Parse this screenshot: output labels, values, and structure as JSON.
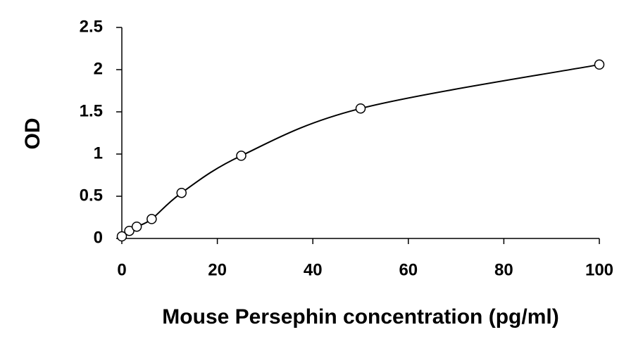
{
  "chart_data": {
    "type": "scatter",
    "x_label": "Mouse Persephin concentration (pg/ml)",
    "y_label": "OD",
    "series": [
      {
        "color": "#000000",
        "x": [
          0,
          1.56,
          3.12,
          6.25,
          12.5,
          25,
          50,
          100
        ],
        "values": [
          0.025,
          0.09,
          0.14,
          0.23,
          0.54,
          0.98,
          1.54,
          2.06
        ]
      }
    ],
    "smooth_line": true,
    "xlim": [
      0,
      100
    ],
    "xticks": [
      0,
      20,
      40,
      60,
      80,
      100
    ],
    "ylim": [
      0,
      2.5
    ],
    "yticks": [
      0,
      0.5,
      1,
      1.5,
      2,
      2.5
    ],
    "grid": false
  }
}
